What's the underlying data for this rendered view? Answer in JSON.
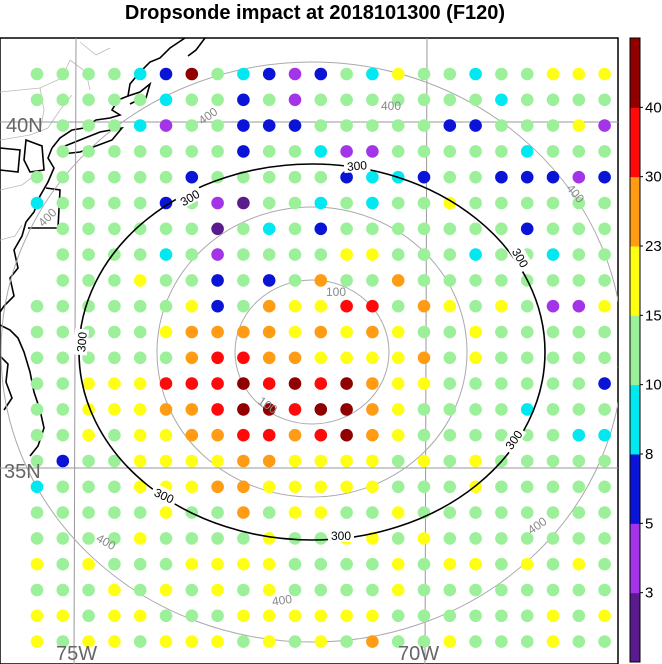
{
  "title": "Dropsonde impact at 2018101300 (F120)",
  "axis_labels": {
    "lat_40": "40N",
    "lat_35": "35N",
    "lon_75": "75W",
    "lon_70": "70W"
  },
  "colorbar": {
    "labels": [
      "3",
      "5",
      "8",
      "10",
      "15",
      "23",
      "30",
      "40"
    ],
    "colors": [
      "#5a1c8c",
      "#a434e8",
      "#0a14d6",
      "#00e8f0",
      "#9cf09a",
      "#ffff14",
      "#ff9c14",
      "#ff0a0a",
      "#900000"
    ]
  },
  "range_rings": {
    "inner_label": "100",
    "black_label": "300",
    "outer_label": "400"
  },
  "colors": {
    "coast": "#000000",
    "grid": "#999999",
    "ring_gray": "#aaaaaa",
    "ring_black": "#000000"
  },
  "chart_data": {
    "type": "heatmap",
    "title": "Dropsonde impact at 2018101300 (F120)",
    "levels": [
      3,
      5,
      8,
      10,
      15,
      23,
      30,
      40
    ],
    "note_values": "class index per grid point: 0=<3, 1=3-5, 2=5-8, 3=8-10, 4=10-15, 5=15-23, 6=23-30, 7=30-40, 8=>40, -1=no point",
    "grid": [
      [
        4,
        4,
        4,
        4,
        3,
        2,
        8,
        4,
        3,
        2,
        1,
        2,
        4,
        3,
        5,
        4,
        4,
        3,
        4,
        4,
        5,
        5,
        5,
        5
      ],
      [
        4,
        4,
        4,
        4,
        4,
        3,
        4,
        4,
        2,
        4,
        1,
        4,
        4,
        4,
        4,
        4,
        4,
        4,
        3,
        4,
        4,
        4,
        4,
        5
      ],
      [
        -1,
        4,
        4,
        4,
        3,
        1,
        4,
        4,
        2,
        2,
        2,
        4,
        4,
        4,
        4,
        4,
        2,
        2,
        4,
        4,
        4,
        5,
        1,
        1
      ],
      [
        -1,
        4,
        4,
        4,
        4,
        4,
        4,
        4,
        2,
        4,
        4,
        3,
        1,
        1,
        4,
        4,
        4,
        4,
        4,
        3,
        4,
        4,
        4,
        4
      ],
      [
        4,
        4,
        4,
        4,
        4,
        4,
        2,
        4,
        4,
        4,
        4,
        4,
        2,
        3,
        3,
        2,
        4,
        4,
        2,
        2,
        2,
        1,
        2,
        2
      ],
      [
        3,
        4,
        4,
        4,
        4,
        2,
        4,
        1,
        0,
        4,
        4,
        3,
        4,
        3,
        4,
        4,
        5,
        4,
        4,
        4,
        4,
        4,
        4,
        3
      ],
      [
        -1,
        4,
        4,
        4,
        4,
        4,
        4,
        0,
        4,
        3,
        4,
        2,
        4,
        4,
        4,
        4,
        4,
        4,
        4,
        2,
        4,
        4,
        4,
        4
      ],
      [
        -1,
        4,
        4,
        4,
        4,
        3,
        4,
        1,
        4,
        4,
        4,
        4,
        5,
        5,
        4,
        4,
        4,
        3,
        4,
        4,
        3,
        4,
        4,
        4
      ],
      [
        -1,
        4,
        4,
        4,
        5,
        4,
        4,
        2,
        4,
        2,
        4,
        6,
        4,
        4,
        6,
        4,
        4,
        4,
        4,
        4,
        4,
        4,
        4,
        4
      ],
      [
        4,
        4,
        4,
        4,
        4,
        4,
        5,
        2,
        4,
        6,
        5,
        5,
        7,
        7,
        4,
        6,
        5,
        4,
        5,
        4,
        1,
        1,
        5,
        1
      ],
      [
        4,
        4,
        4,
        4,
        4,
        5,
        6,
        6,
        6,
        6,
        5,
        6,
        5,
        6,
        5,
        4,
        4,
        5,
        4,
        4,
        4,
        4,
        4,
        2
      ],
      [
        4,
        4,
        4,
        4,
        4,
        4,
        6,
        7,
        7,
        6,
        6,
        5,
        5,
        5,
        5,
        6,
        4,
        5,
        4,
        4,
        4,
        4,
        4,
        2
      ],
      [
        4,
        4,
        5,
        5,
        5,
        7,
        7,
        7,
        8,
        7,
        8,
        7,
        8,
        6,
        5,
        5,
        4,
        4,
        4,
        4,
        4,
        4,
        2,
        4
      ],
      [
        4,
        4,
        5,
        5,
        5,
        6,
        6,
        7,
        8,
        8,
        7,
        8,
        8,
        6,
        5,
        4,
        4,
        4,
        4,
        3,
        4,
        4,
        4,
        4
      ],
      [
        4,
        4,
        5,
        4,
        5,
        5,
        6,
        6,
        7,
        7,
        6,
        7,
        8,
        6,
        5,
        4,
        4,
        4,
        4,
        4,
        4,
        3,
        3,
        4
      ],
      [
        4,
        2,
        4,
        4,
        5,
        5,
        5,
        5,
        6,
        6,
        5,
        5,
        5,
        5,
        4,
        5,
        4,
        5,
        4,
        4,
        4,
        4,
        4,
        2
      ],
      [
        3,
        4,
        4,
        4,
        5,
        5,
        5,
        6,
        6,
        5,
        5,
        5,
        5,
        5,
        4,
        4,
        4,
        5,
        4,
        4,
        4,
        4,
        4,
        3
      ],
      [
        4,
        4,
        4,
        4,
        4,
        5,
        4,
        4,
        6,
        4,
        5,
        5,
        4,
        4,
        5,
        4,
        4,
        4,
        4,
        4,
        4,
        4,
        4,
        4
      ],
      [
        4,
        4,
        4,
        4,
        5,
        4,
        4,
        4,
        4,
        5,
        4,
        4,
        5,
        5,
        4,
        5,
        4,
        4,
        4,
        4,
        4,
        4,
        4,
        4
      ],
      [
        5,
        4,
        5,
        4,
        4,
        4,
        5,
        5,
        5,
        5,
        4,
        4,
        4,
        4,
        5,
        4,
        5,
        5,
        4,
        5,
        4,
        5,
        4,
        4
      ],
      [
        4,
        4,
        4,
        5,
        4,
        5,
        4,
        5,
        4,
        5,
        4,
        4,
        4,
        4,
        5,
        4,
        4,
        4,
        4,
        4,
        4,
        4,
        4,
        4
      ],
      [
        5,
        5,
        4,
        5,
        5,
        4,
        4,
        4,
        5,
        5,
        5,
        5,
        5,
        5,
        4,
        4,
        4,
        4,
        4,
        4,
        5,
        4,
        5,
        4
      ],
      [
        5,
        4,
        5,
        5,
        4,
        5,
        5,
        5,
        4,
        5,
        4,
        5,
        4,
        6,
        4,
        4,
        5,
        4,
        4,
        4,
        5,
        4,
        4,
        4
      ]
    ]
  }
}
